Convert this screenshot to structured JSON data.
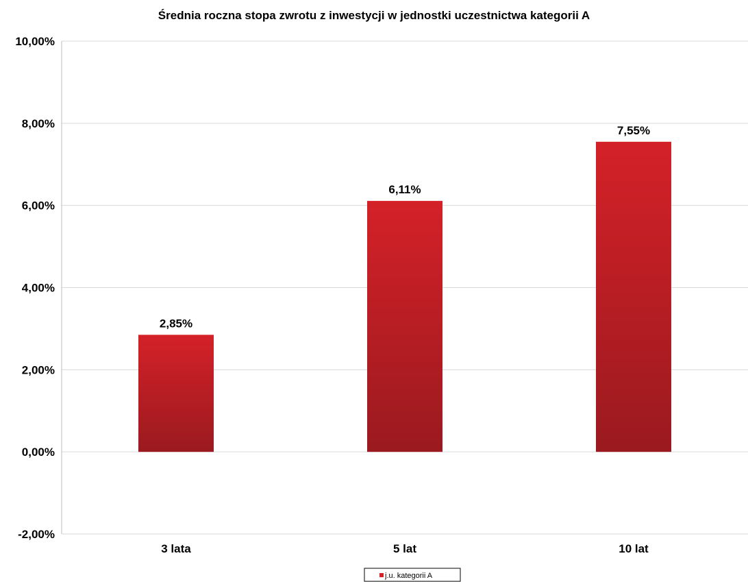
{
  "chart_data": {
    "type": "bar",
    "title": "Średnia roczna stopa zwrotu z inwestycji w jednostki uczestnictwa kategorii A",
    "categories": [
      "3 lata",
      "5 lat",
      "10 lat"
    ],
    "series": [
      {
        "name": "j.u. kategorii A",
        "values": [
          2.85,
          6.11,
          7.55
        ],
        "data_labels": [
          "2,85%",
          "6,11%",
          "7,55%"
        ]
      }
    ],
    "xlabel": "",
    "ylabel": "",
    "ylim": [
      -2,
      10
    ],
    "yticks": [
      10,
      8,
      6,
      4,
      2,
      0,
      -2
    ],
    "ytick_labels": [
      "10,00%",
      "8,00%",
      "6,00%",
      "4,00%",
      "2,00%",
      "0,00%",
      "-2,00%"
    ],
    "grid": true,
    "legend_position": "bottom",
    "colors": {
      "bar_top": "#d42128",
      "bar_bottom": "#9a1a1f",
      "grid": "#d9d9d9",
      "axis": "#bfbfbf",
      "legend_border": "#000000"
    }
  }
}
